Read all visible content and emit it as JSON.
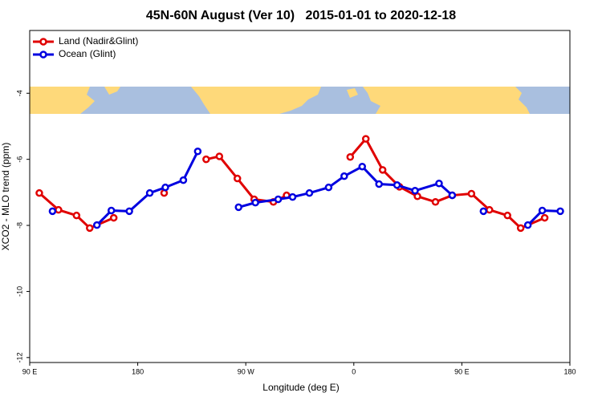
{
  "chart_data": {
    "type": "line",
    "title": "45N-60N August (Ver 10)   2015-01-01 to 2020-12-18",
    "x_label": "Longitude (deg E)",
    "y_label": "XCO2 - MLO trend (ppm)",
    "xlim": [
      90,
      540
    ],
    "xticks": [
      {
        "value": 90,
        "label": "90 E"
      },
      180,
      {
        "value": 270,
        "label": "90 W"
      },
      {
        "value": 360,
        "label": "0"
      },
      {
        "value": 450,
        "label": "90 E"
      },
      {
        "value": 540,
        "label": "180"
      }
    ],
    "ylim": [
      -12.15,
      -2.1
    ],
    "yticks": [
      -12,
      -10,
      -8,
      -6,
      -4
    ],
    "legend": "top-left",
    "series": [
      {
        "name": "Land (Nadir&Glint)",
        "color": "#e00000",
        "x": [
          98,
          114,
          129,
          140,
          160,
          null,
          202,
          null,
          237,
          248,
          263,
          277,
          293,
          304,
          null,
          357,
          370,
          384,
          398,
          413,
          428,
          442,
          458,
          473,
          488,
          499,
          519
        ],
        "values": [
          -7.02,
          -7.53,
          -7.7,
          -8.08,
          -7.77,
          null,
          -7.02,
          null,
          -6.0,
          -5.91,
          -6.58,
          -7.21,
          -7.29,
          -7.09,
          null,
          -5.93,
          -5.38,
          -6.32,
          -6.83,
          -7.12,
          -7.29,
          -7.09,
          -7.04,
          -7.53,
          -7.7,
          -8.08,
          -7.77
        ]
      },
      {
        "name": "Ocean (Glint)",
        "color": "#0000e0",
        "x": [
          109,
          null,
          146,
          158,
          173,
          190,
          203,
          218,
          230,
          null,
          264,
          278,
          297,
          309,
          323,
          339,
          352,
          367,
          381,
          396,
          411,
          431,
          442,
          null,
          468,
          null,
          505,
          517,
          532
        ],
        "values": [
          -7.57,
          null,
          -7.99,
          -7.55,
          -7.57,
          -7.02,
          -6.85,
          -6.63,
          -5.76,
          null,
          -7.45,
          -7.31,
          -7.21,
          -7.14,
          -7.02,
          -6.85,
          -6.51,
          -6.22,
          -6.75,
          -6.78,
          -6.95,
          -6.73,
          -7.09,
          null,
          -7.57,
          null,
          -7.99,
          -7.55,
          -7.57
        ]
      }
    ]
  }
}
